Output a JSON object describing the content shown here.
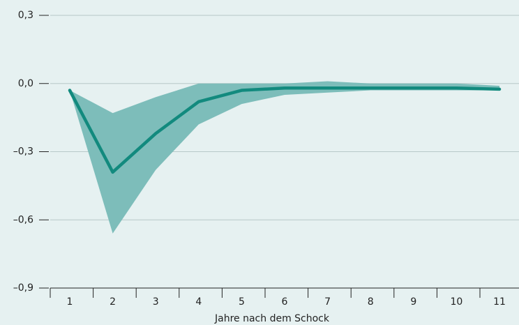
{
  "chart_data": {
    "type": "line",
    "x_label": "Jahre nach dem Schock",
    "categories": [
      "1",
      "2",
      "3",
      "4",
      "5",
      "6",
      "7",
      "8",
      "9",
      "10",
      "11"
    ],
    "series": [
      {
        "color": "#128a7e",
        "values": [
          -0.03,
          -0.39,
          -0.22,
          -0.08,
          -0.03,
          -0.02,
          -0.02,
          -0.02,
          -0.02,
          -0.02,
          -0.025
        ]
      }
    ],
    "band": {
      "color": "#7dbdba",
      "upper": [
        -0.03,
        -0.13,
        -0.06,
        0.0,
        0.0,
        0.0,
        0.01,
        0.0,
        0.0,
        0.0,
        -0.01
      ],
      "lower": [
        -0.03,
        -0.66,
        -0.38,
        -0.18,
        -0.09,
        -0.05,
        -0.04,
        -0.03,
        -0.03,
        -0.03,
        -0.03
      ]
    },
    "ylim": [
      -0.9,
      0.3
    ],
    "yticks": [
      {
        "value": 0.3,
        "label": "0,3"
      },
      {
        "value": 0.0,
        "label": "0,0"
      },
      {
        "value": -0.3,
        "label": "–0,3"
      },
      {
        "value": -0.6,
        "label": "–0,6"
      },
      {
        "value": -0.9,
        "label": "–0,9"
      }
    ],
    "grid": true
  }
}
